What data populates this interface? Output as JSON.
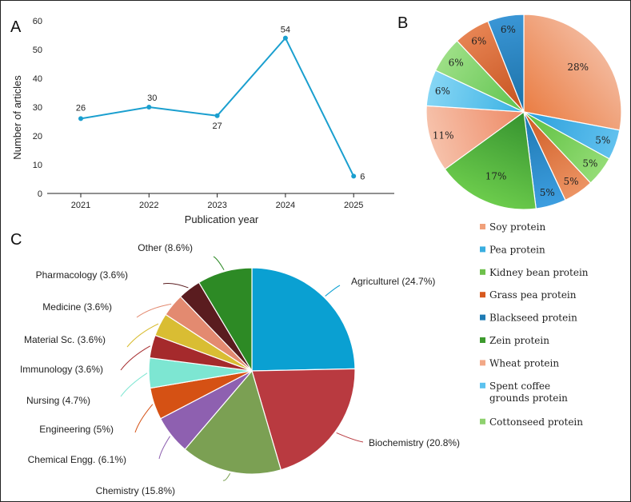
{
  "panels": {
    "a": "A",
    "b": "B",
    "c": "C"
  },
  "chart_data": [
    {
      "type": "line",
      "panel": "A",
      "xlabel": "Publication year",
      "ylabel": "Number of articles",
      "x": [
        "2021",
        "2022",
        "2023",
        "2024",
        "2025"
      ],
      "values": [
        26,
        30,
        27,
        54,
        6
      ],
      "labels": [
        "26",
        "30",
        "27",
        "54",
        "6"
      ],
      "yticks": [
        "0",
        "10",
        "20",
        "30",
        "40",
        "50",
        "60"
      ],
      "ylim": [
        0,
        60
      ],
      "color": "#1a9fcf"
    },
    {
      "type": "pie",
      "panel": "B",
      "legend_position": "bottom",
      "slices": [
        {
          "name": "Soy protein",
          "value": 28,
          "label": "28%",
          "color": "#ea7d43",
          "light": "#f3b79a"
        },
        {
          "name": "Pea protein",
          "value": 5,
          "label": "5%",
          "color": "#2a9edb",
          "light": "#61c1ee"
        },
        {
          "name": "Kidney bean protein",
          "value": 5,
          "label": "5%",
          "color": "#5cbf3f",
          "light": "#94dc76"
        },
        {
          "name": "Grass pea protein",
          "value": 5,
          "label": "5%",
          "color": "#cf5a22",
          "light": "#ec9464"
        },
        {
          "name": "Blackseed protein",
          "value": 5,
          "label": "5%",
          "color": "#1d77b0",
          "light": "#3d9ee0"
        },
        {
          "name": "Zein protein",
          "value": 17,
          "label": "17%",
          "color": "#35922f",
          "light": "#6ccc4c"
        },
        {
          "name": "Wheat protein",
          "value": 11,
          "label": "11%",
          "color": "#ee8a66",
          "light": "#f6c2ab"
        },
        {
          "name": "Spent coffee grounds protein",
          "value": 6,
          "label": "6%",
          "color": "#3ab1e3",
          "light": "#86d6f5"
        },
        {
          "name": "Cottonseed protein",
          "value": 6,
          "label": "6%",
          "color": "#5ec34e",
          "light": "#9ddf86"
        },
        {
          "name": "Grass pea protein",
          "value": 6,
          "label": "6%",
          "color": "#c5511e",
          "light": "#e78453"
        },
        {
          "name": "Blackseed protein",
          "value": 6,
          "label": "6%",
          "color": "#1b70a6",
          "light": "#3a96d6"
        }
      ],
      "legend": [
        {
          "label": "Soy protein",
          "color": "#f0a07a"
        },
        {
          "label": "Pea protein",
          "color": "#3aaee0"
        },
        {
          "label": "Kidney bean protein",
          "color": "#6ec04b"
        },
        {
          "label": "Grass pea protein",
          "color": "#d7591e"
        },
        {
          "label": "Blackseed protein",
          "color": "#1e7bb4"
        },
        {
          "label": "Zein protein",
          "color": "#3d9a2e"
        },
        {
          "label": "Wheat protein",
          "color": "#f2a887"
        },
        {
          "label": "Spent coffee\ngrounds protein",
          "color": "#5cc2ef"
        },
        {
          "label": "Cottonseed protein",
          "color": "#8fd16f"
        }
      ]
    },
    {
      "type": "pie",
      "panel": "C",
      "slices": [
        {
          "name": "Agriculturel",
          "value": 24.7,
          "label": "Agriculturel (24.7%)",
          "color": "#0aa0d2"
        },
        {
          "name": "Biochemistry",
          "value": 20.8,
          "label": "Biochemistry (20.8%)",
          "color": "#b93a40"
        },
        {
          "name": "Chemistry",
          "value": 15.8,
          "label": "Chemistry (15.8%)",
          "color": "#7ba053"
        },
        {
          "name": "Chemical Engg.",
          "value": 6.1,
          "label": "Chemical Engg. (6.1%)",
          "color": "#8e60b0"
        },
        {
          "name": "Engineering",
          "value": 5,
          "label": "Engineering (5%)",
          "color": "#d55114"
        },
        {
          "name": "Nursing",
          "value": 4.7,
          "label": "Nursing (4.7%)",
          "color": "#7de6d2"
        },
        {
          "name": "Immunology",
          "value": 3.6,
          "label": "Immunology (3.6%)",
          "color": "#a52a2c"
        },
        {
          "name": "Material Sc.",
          "value": 3.6,
          "label": "Material Sc. (3.6%)",
          "color": "#d9bd33"
        },
        {
          "name": "Medicine",
          "value": 3.6,
          "label": "Medicine (3.6%)",
          "color": "#e38a70"
        },
        {
          "name": "Pharmacology",
          "value": 3.6,
          "label": "Pharmacology (3.6%)",
          "color": "#5a1c1f"
        },
        {
          "name": "Other",
          "value": 8.6,
          "label": "Other (8.6%)",
          "color": "#2d8a25"
        }
      ]
    }
  ]
}
